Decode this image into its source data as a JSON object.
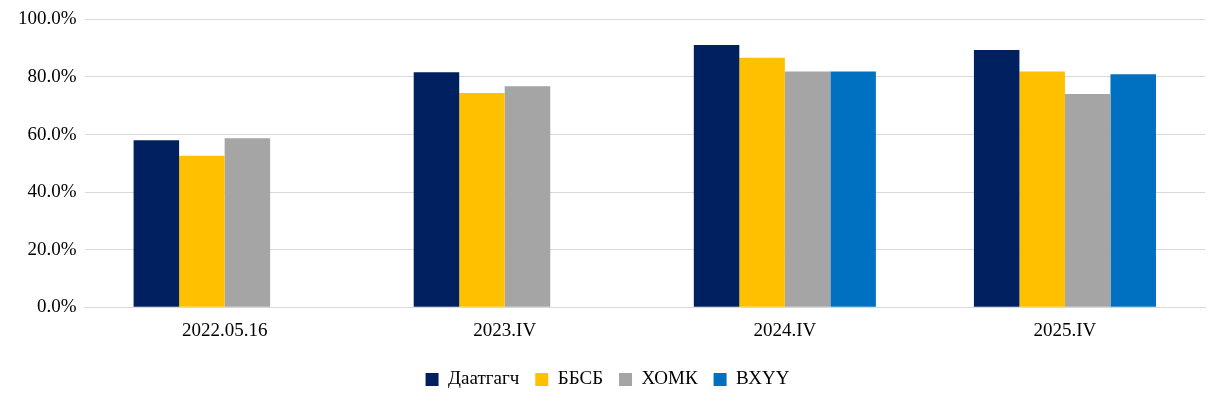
{
  "chart_data": {
    "type": "bar",
    "categories": [
      "2022.05.16",
      "2023.IV",
      "2024.IV",
      "2025.IV"
    ],
    "series": [
      {
        "name": "Даатгагч",
        "color": "#002060",
        "values": [
          58.0,
          81.6,
          91.1,
          89.4
        ]
      },
      {
        "name": "ББСБ",
        "color": "#ffc000",
        "values": [
          52.6,
          74.4,
          86.7,
          81.9
        ]
      },
      {
        "name": "ХОМК",
        "color": "#a5a5a5",
        "values": [
          58.7,
          76.8,
          81.9,
          74.1
        ]
      },
      {
        "name": "ВХҮҮ",
        "color": "#0070c0",
        "values": [
          null,
          null,
          81.9,
          80.9
        ]
      }
    ],
    "ylim": [
      0,
      100
    ],
    "yticks": [
      {
        "value": 0,
        "label": "0.0%"
      },
      {
        "value": 20,
        "label": "20.0%"
      },
      {
        "value": 40,
        "label": "40.0%"
      },
      {
        "value": 60,
        "label": "60.0%"
      },
      {
        "value": 80,
        "label": "80.0%"
      },
      {
        "value": 100,
        "label": "100.0%"
      }
    ],
    "grid": "y",
    "legend": "bottom"
  }
}
